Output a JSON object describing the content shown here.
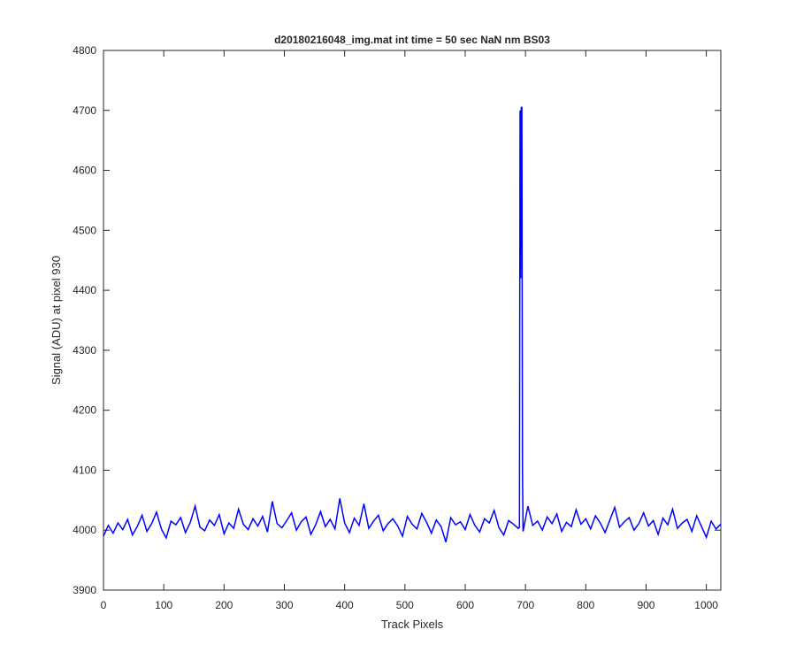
{
  "chart_data": {
    "type": "line",
    "title": "d20180216048_img.mat int time = 50 sec  NaN nm BS03",
    "x_label": "Track Pixels",
    "y_label": "Signal (ADU) at pixel 930",
    "xlim": [
      0,
      1024
    ],
    "ylim": [
      3900,
      4800
    ],
    "xticks": [
      0,
      100,
      200,
      300,
      400,
      500,
      600,
      700,
      800,
      900,
      1000
    ],
    "yticks": [
      3900,
      4000,
      4100,
      4200,
      4300,
      4400,
      4500,
      4600,
      4700,
      4800
    ],
    "grid": false,
    "x": [
      0,
      8,
      16,
      24,
      32,
      40,
      48,
      56,
      64,
      72,
      80,
      88,
      96,
      104,
      112,
      120,
      128,
      136,
      144,
      152,
      160,
      168,
      176,
      184,
      192,
      200,
      208,
      216,
      224,
      232,
      240,
      248,
      256,
      264,
      272,
      280,
      288,
      296,
      304,
      312,
      320,
      328,
      336,
      344,
      352,
      360,
      368,
      376,
      384,
      392,
      400,
      408,
      416,
      424,
      432,
      440,
      448,
      456,
      464,
      472,
      480,
      488,
      496,
      504,
      512,
      520,
      528,
      536,
      544,
      552,
      560,
      568,
      576,
      584,
      592,
      600,
      608,
      616,
      624,
      632,
      640,
      648,
      656,
      664,
      672,
      680,
      688,
      690,
      691,
      692,
      693,
      694,
      695,
      696,
      704,
      712,
      720,
      728,
      736,
      744,
      752,
      760,
      768,
      776,
      784,
      792,
      800,
      808,
      816,
      824,
      832,
      840,
      848,
      856,
      864,
      872,
      880,
      888,
      896,
      904,
      912,
      920,
      928,
      936,
      944,
      952,
      960,
      968,
      976,
      984,
      992,
      1000,
      1008,
      1016,
      1024
    ],
    "series": [
      {
        "color": "#0000ff",
        "values": [
          3990,
          4008,
          3995,
          4012,
          4001,
          4018,
          3992,
          4006,
          4025,
          3998,
          4011,
          4030,
          4002,
          3987,
          4015,
          4009,
          4021,
          3996,
          4013,
          4040,
          4005,
          3999,
          4017,
          4008,
          4026,
          3994,
          4012,
          4003,
          4035,
          4010,
          4001,
          4019,
          4007,
          4023,
          3997,
          4048,
          4011,
          4004,
          4016,
          4029,
          4000,
          4014,
          4022,
          3993,
          4009,
          4031,
          4006,
          4018,
          4002,
          4053,
          4012,
          3996,
          4020,
          4008,
          4044,
          4003,
          4015,
          4025,
          3999,
          4011,
          4019,
          4007,
          3990,
          4023,
          4010,
          4002,
          4028,
          4013,
          3995,
          4017,
          4006,
          3980,
          4021,
          4009,
          4014,
          4001,
          4026,
          4008,
          3997,
          4019,
          4012,
          4033,
          4004,
          3992,
          4016,
          4010,
          4003,
          4005,
          4700,
          4420,
          4705,
          4705,
          4100,
          3998,
          4040,
          4008,
          4015,
          4000,
          4022,
          4011,
          4027,
          3998,
          4013,
          4006,
          4034,
          4010,
          4019,
          4002,
          4024,
          4012,
          3996,
          4017,
          4038,
          4005,
          4014,
          4021,
          4000,
          4011,
          4029,
          4007,
          4016,
          3993,
          4020,
          4009,
          4035,
          4003,
          4012,
          4018,
          3998,
          4024,
          4006,
          3988,
          4015,
          4002,
          4010
        ]
      }
    ]
  }
}
